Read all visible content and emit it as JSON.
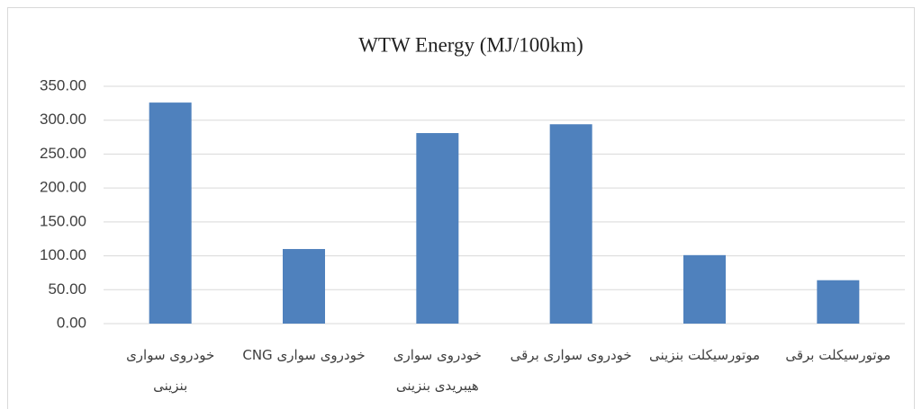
{
  "chart_data": {
    "type": "bar",
    "title": "WTW Energy (MJ/100km)",
    "categories": [
      "خودروی سواری بنزینی",
      "خودروی سواری CNG",
      "خودروی سواری هیبریدی بنزینی",
      "خودروی سواری برقی",
      "موتورسیکلت بنزینی",
      "موتورسیکلت برقی"
    ],
    "values": [
      326,
      110,
      281,
      294,
      101,
      64
    ],
    "color": "#4f81bd",
    "ylim": [
      0,
      350
    ],
    "yticks": [
      {
        "value": 0,
        "label": "0.00"
      },
      {
        "value": 50,
        "label": "50.00"
      },
      {
        "value": 100,
        "label": "100.00"
      },
      {
        "value": 150,
        "label": "150.00"
      },
      {
        "value": 200,
        "label": "200.00"
      },
      {
        "value": 250,
        "label": "250.00"
      },
      {
        "value": 300,
        "label": "300.00"
      },
      {
        "value": 350,
        "label": "350.00"
      }
    ],
    "grid": true
  }
}
